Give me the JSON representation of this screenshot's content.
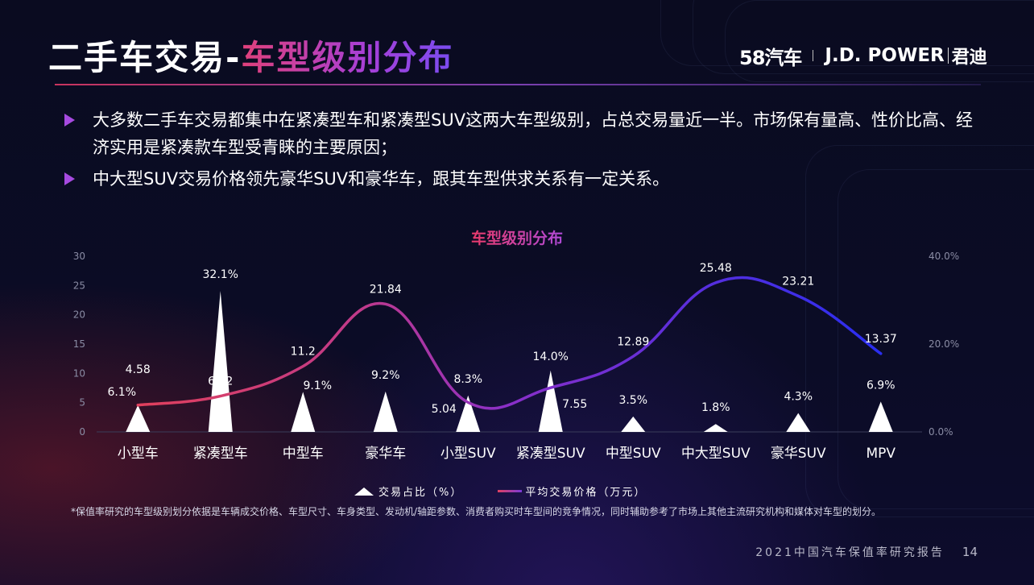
{
  "header": {
    "title_part1": "二手车交易-",
    "title_part2": "车型级别分布",
    "logo_58": "58汽车",
    "logo_jdpower": "J.D. POWER",
    "logo_jundi": "君迪"
  },
  "bullets": [
    "大多数二手车交易都集中在紧凑型车和紧凑型SUV这两大车型级别，占总交易量近一半。市场保有量高、性价比高、经济实用是紧凑款车型受青睐的主要原因；",
    "中大型SUV交易价格领先豪华SUV和豪华车，跟其车型供求关系有一定关系。"
  ],
  "footnote": "*保值率研究的车型级别划分依据是车辆成交价格、车型尺寸、车身类型、发动机/轴距参数、消费者购买时车型间的竞争情况，同时辅助参考了市场上其他主流研究机构和媒体对车型的划分。",
  "footer": {
    "report": "2021中国汽车保值率研究报告",
    "page": "14"
  },
  "colors": {
    "line_start": "#e0405c",
    "line_mid": "#8a2fc8",
    "line_end": "#2a2ef0",
    "title_gradient_start": "#e0407a",
    "title_gradient_end": "#7a4cf0"
  },
  "chart_data": {
    "type": "bar",
    "title": "车型级别分布",
    "categories": [
      "小型车",
      "紧凑型车",
      "中型车",
      "豪华车",
      "小型SUV",
      "紧凑型SUV",
      "中型SUV",
      "中大型SUV",
      "豪华SUV",
      "MPV"
    ],
    "series": [
      {
        "name": "交易占比（%）",
        "type": "triangle-bar",
        "axis": "right",
        "values": [
          6.1,
          32.1,
          9.1,
          9.2,
          8.3,
          14.0,
          3.5,
          1.8,
          4.3,
          6.9
        ],
        "labels": [
          "6.1%",
          "32.1%",
          "9.1%",
          "9.2%",
          "8.3%",
          "14.0%",
          "3.5%",
          "1.8%",
          "4.3%",
          "6.9%"
        ]
      },
      {
        "name": "平均交易价格（万元）",
        "type": "line",
        "axis": "left",
        "values": [
          4.58,
          6.12,
          11.2,
          21.84,
          5.04,
          7.55,
          12.89,
          25.48,
          23.21,
          13.37
        ],
        "labels": [
          "4.58",
          "6.12",
          "11.2",
          "21.84",
          "5.04",
          "7.55",
          "12.89",
          "25.48",
          "23.21",
          "13.37"
        ]
      }
    ],
    "y_left": {
      "ticks": [
        "0",
        "5",
        "10",
        "15",
        "20",
        "25",
        "30"
      ],
      "range": [
        0,
        30
      ]
    },
    "y_right": {
      "ticks": [
        "0.0%",
        "20.0%",
        "40.0%"
      ],
      "range": [
        0,
        40
      ]
    },
    "legend_position": "bottom"
  }
}
